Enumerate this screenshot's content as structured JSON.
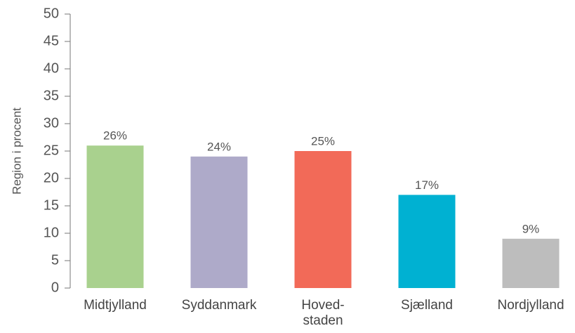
{
  "chart_data": {
    "type": "bar",
    "ylabel": "Region i procent",
    "categories": [
      "Midtjylland",
      "Syddanmark",
      "Hoved-\nstaden",
      "Sjælland",
      "Nordjylland"
    ],
    "values": [
      26,
      24,
      25,
      17,
      9
    ],
    "value_labels": [
      "26%",
      "24%",
      "25%",
      "17%",
      "9%"
    ],
    "colors": [
      "#a9d18e",
      "#aeaac9",
      "#f26a58",
      "#00b1d2",
      "#bdbdbd"
    ],
    "ylim": [
      0,
      50
    ],
    "yticks": [
      0,
      5,
      10,
      15,
      20,
      25,
      30,
      35,
      40,
      45,
      50
    ],
    "grid": false
  }
}
